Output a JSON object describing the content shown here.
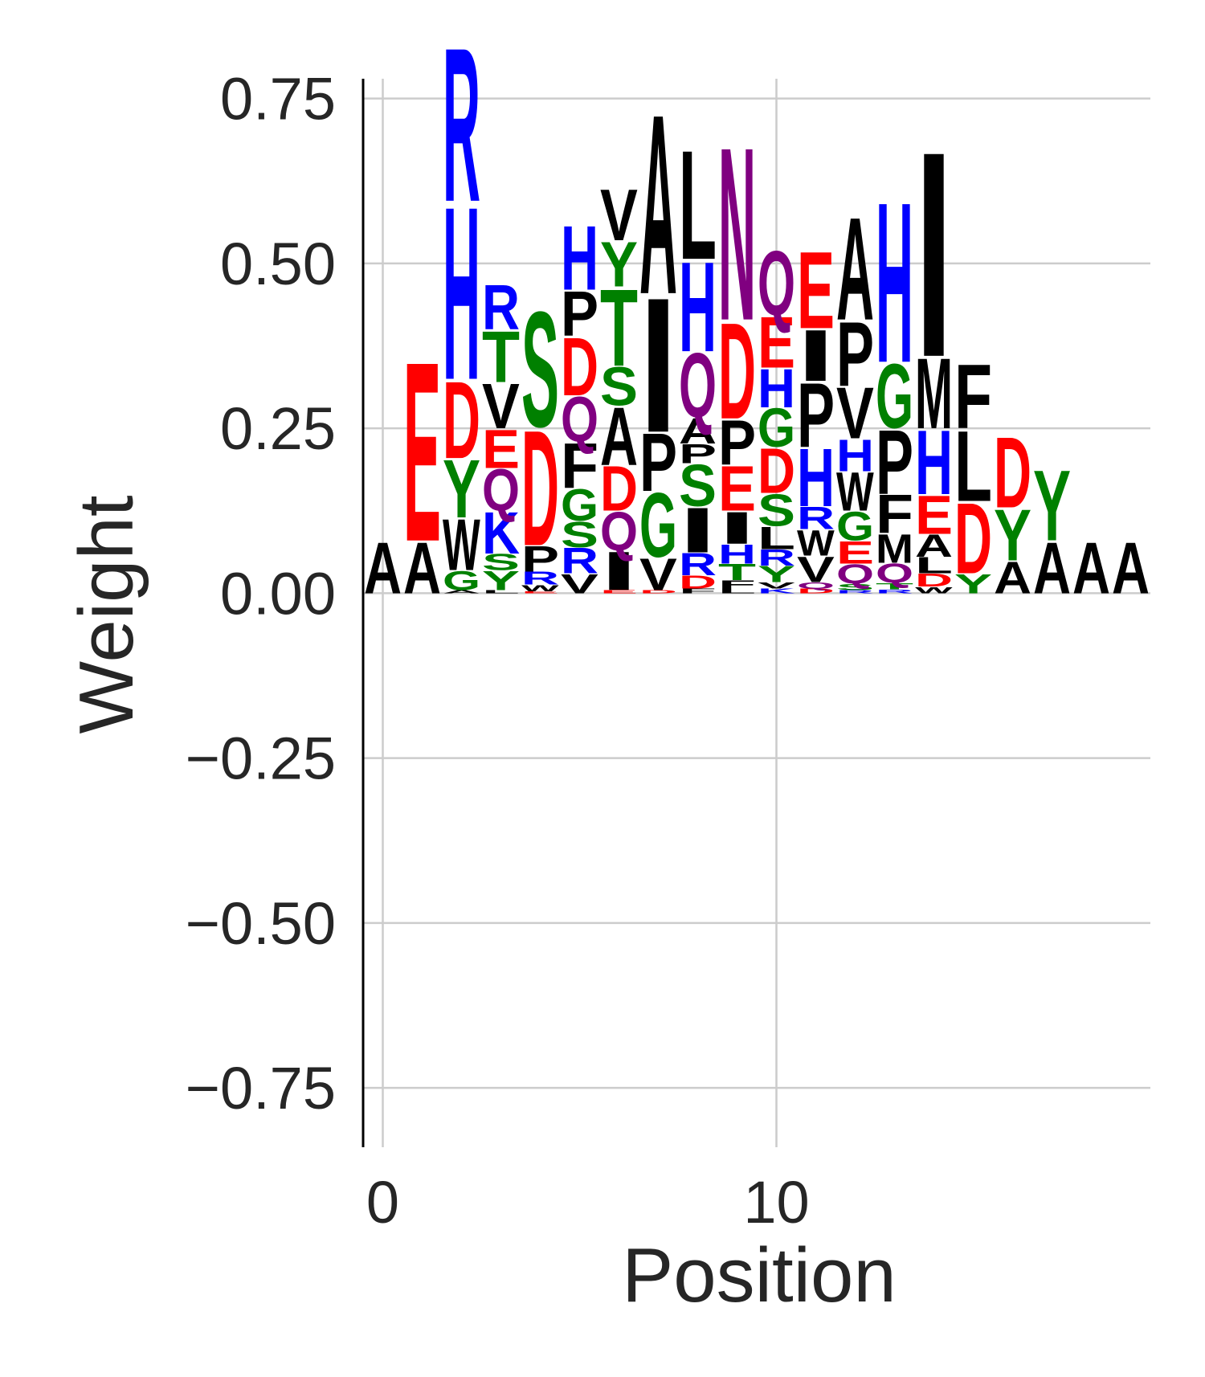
{
  "chart_data": {
    "type": "sequence-logo",
    "xlabel": "Position",
    "ylabel": "Weight",
    "xlim": [
      -0.5,
      19.5
    ],
    "ylim": [
      -0.84,
      0.78
    ],
    "xticks": [
      0,
      10
    ],
    "xtick_labels": [
      "0",
      "10"
    ],
    "yticks": [
      0.75,
      0.5,
      0.25,
      0.0,
      -0.25,
      -0.5,
      -0.75
    ],
    "ytick_labels": [
      "0.75",
      "0.50",
      "0.25",
      "0.00",
      "−0.25",
      "−0.50",
      "−0.75"
    ],
    "grid": true,
    "colors": {
      "A": "#000000",
      "C": "#008000",
      "D": "#ff0000",
      "E": "#ff0000",
      "F": "#000000",
      "G": "#008000",
      "H": "#0000ff",
      "I": "#000000",
      "K": "#0000ff",
      "L": "#000000",
      "M": "#000000",
      "N": "#800080",
      "P": "#000000",
      "Q": "#800080",
      "R": "#0000ff",
      "S": "#008000",
      "T": "#008000",
      "V": "#000000",
      "W": "#000000",
      "Y": "#008000"
    },
    "positions": [
      {
        "pos": 0,
        "stack": [
          [
            "A",
            0.08
          ]
        ]
      },
      {
        "pos": 1,
        "stack": [
          [
            "A",
            0.08
          ],
          [
            "E",
            0.28
          ]
        ]
      },
      {
        "pos": 2,
        "stack": [
          [
            "A",
            0.005
          ],
          [
            "G",
            0.03
          ],
          [
            "W",
            0.08
          ],
          [
            "Y",
            0.09
          ],
          [
            "D",
            0.12
          ],
          [
            "H",
            0.27
          ],
          [
            "R",
            0.24
          ]
        ]
      },
      {
        "pos": 3,
        "stack": [
          [
            "L",
            0.005
          ],
          [
            "Y",
            0.03
          ],
          [
            "S",
            0.025
          ],
          [
            "K",
            0.065
          ],
          [
            "Q",
            0.065
          ],
          [
            "E",
            0.06
          ],
          [
            "V",
            0.07
          ],
          [
            "T",
            0.08
          ],
          [
            "R",
            0.07
          ]
        ]
      },
      {
        "pos": 4,
        "stack": [
          [
            "E",
            0.003
          ],
          [
            "W",
            0.01
          ],
          [
            "R",
            0.02
          ],
          [
            "P",
            0.04
          ],
          [
            "D",
            0.18
          ],
          [
            "S",
            0.18
          ]
        ]
      },
      {
        "pos": 5,
        "stack": [
          [
            "V",
            0.03
          ],
          [
            "R",
            0.04
          ],
          [
            "S",
            0.04
          ],
          [
            "G",
            0.05
          ],
          [
            "F",
            0.07
          ],
          [
            "Q",
            0.07
          ],
          [
            "D",
            0.09
          ],
          [
            "P",
            0.07
          ],
          [
            "H",
            0.1
          ]
        ]
      },
      {
        "pos": 6,
        "stack": [
          [
            "E",
            0.005
          ],
          [
            "I",
            0.06
          ],
          [
            "Q",
            0.06
          ],
          [
            "D",
            0.07
          ],
          [
            "A",
            0.09
          ],
          [
            "S",
            0.06
          ],
          [
            "T",
            0.12
          ],
          [
            "Y",
            0.07
          ],
          [
            "V",
            0.08
          ]
        ]
      },
      {
        "pos": 7,
        "stack": [
          [
            "D",
            0.005
          ],
          [
            "V",
            0.05
          ],
          [
            "G",
            0.1
          ],
          [
            "P",
            0.09
          ],
          [
            "I",
            0.21
          ],
          [
            "A",
            0.28
          ]
        ]
      },
      {
        "pos": 8,
        "stack": [
          [
            "F",
            0.007
          ],
          [
            "D",
            0.02
          ],
          [
            "R",
            0.035
          ],
          [
            "I",
            0.07
          ],
          [
            "S",
            0.065
          ],
          [
            "P",
            0.03
          ],
          [
            "A",
            0.04
          ],
          [
            "Q",
            0.1
          ],
          [
            "H",
            0.14
          ],
          [
            "L",
            0.17
          ]
        ]
      },
      {
        "pos": 9,
        "stack": [
          [
            "L",
            0.007
          ],
          [
            "F",
            0.013
          ],
          [
            "T",
            0.025
          ],
          [
            "H",
            0.03
          ],
          [
            "I",
            0.05
          ],
          [
            "E",
            0.07
          ],
          [
            "P",
            0.07
          ],
          [
            "D",
            0.15
          ],
          [
            "N",
            0.27
          ]
        ]
      },
      {
        "pos": 10,
        "stack": [
          [
            "K",
            0.007
          ],
          [
            "V",
            0.01
          ],
          [
            "Y",
            0.025
          ],
          [
            "R",
            0.025
          ],
          [
            "L",
            0.035
          ],
          [
            "S",
            0.05
          ],
          [
            "D",
            0.07
          ],
          [
            "G",
            0.06
          ],
          [
            "H",
            0.06
          ],
          [
            "E",
            0.08
          ],
          [
            "Q",
            0.1
          ]
        ]
      },
      {
        "pos": 11,
        "stack": [
          [
            "D",
            0.007
          ],
          [
            "Q",
            0.01
          ],
          [
            "V",
            0.04
          ],
          [
            "W",
            0.04
          ],
          [
            "R",
            0.035
          ],
          [
            "H",
            0.09
          ],
          [
            "P",
            0.1
          ],
          [
            "I",
            0.08
          ],
          [
            "E",
            0.12
          ]
        ]
      },
      {
        "pos": 12,
        "stack": [
          [
            "R",
            0.005
          ],
          [
            "S",
            0.01
          ],
          [
            "Q",
            0.03
          ],
          [
            "E",
            0.035
          ],
          [
            "G",
            0.045
          ],
          [
            "W",
            0.06
          ],
          [
            "H",
            0.05
          ],
          [
            "V",
            0.08
          ],
          [
            "P",
            0.1
          ],
          [
            "A",
            0.16
          ]
        ]
      },
      {
        "pos": 13,
        "stack": [
          [
            "R",
            0.006
          ],
          [
            "T",
            0.01
          ],
          [
            "Q",
            0.03
          ],
          [
            "M",
            0.045
          ],
          [
            "F",
            0.06
          ],
          [
            "P",
            0.1
          ],
          [
            "G",
            0.1
          ],
          [
            "H",
            0.25
          ]
        ]
      },
      {
        "pos": 14,
        "stack": [
          [
            "W",
            0.01
          ],
          [
            "D",
            0.02
          ],
          [
            "L",
            0.025
          ],
          [
            "A",
            0.035
          ],
          [
            "E",
            0.06
          ],
          [
            "H",
            0.1
          ],
          [
            "M",
            0.11
          ],
          [
            "I",
            0.32
          ]
        ]
      },
      {
        "pos": 15,
        "stack": [
          [
            "Y",
            0.03
          ],
          [
            "D",
            0.11
          ],
          [
            "L",
            0.11
          ],
          [
            "F",
            0.1
          ]
        ]
      },
      {
        "pos": 16,
        "stack": [
          [
            "A",
            0.05
          ],
          [
            "Y",
            0.08
          ],
          [
            "D",
            0.11
          ]
        ]
      },
      {
        "pos": 17,
        "stack": [
          [
            "A",
            0.08
          ],
          [
            "Y",
            0.11
          ]
        ]
      },
      {
        "pos": 18,
        "stack": [
          [
            "A",
            0.08
          ]
        ]
      },
      {
        "pos": 19,
        "stack": [
          [
            "A",
            0.08
          ]
        ]
      }
    ]
  }
}
